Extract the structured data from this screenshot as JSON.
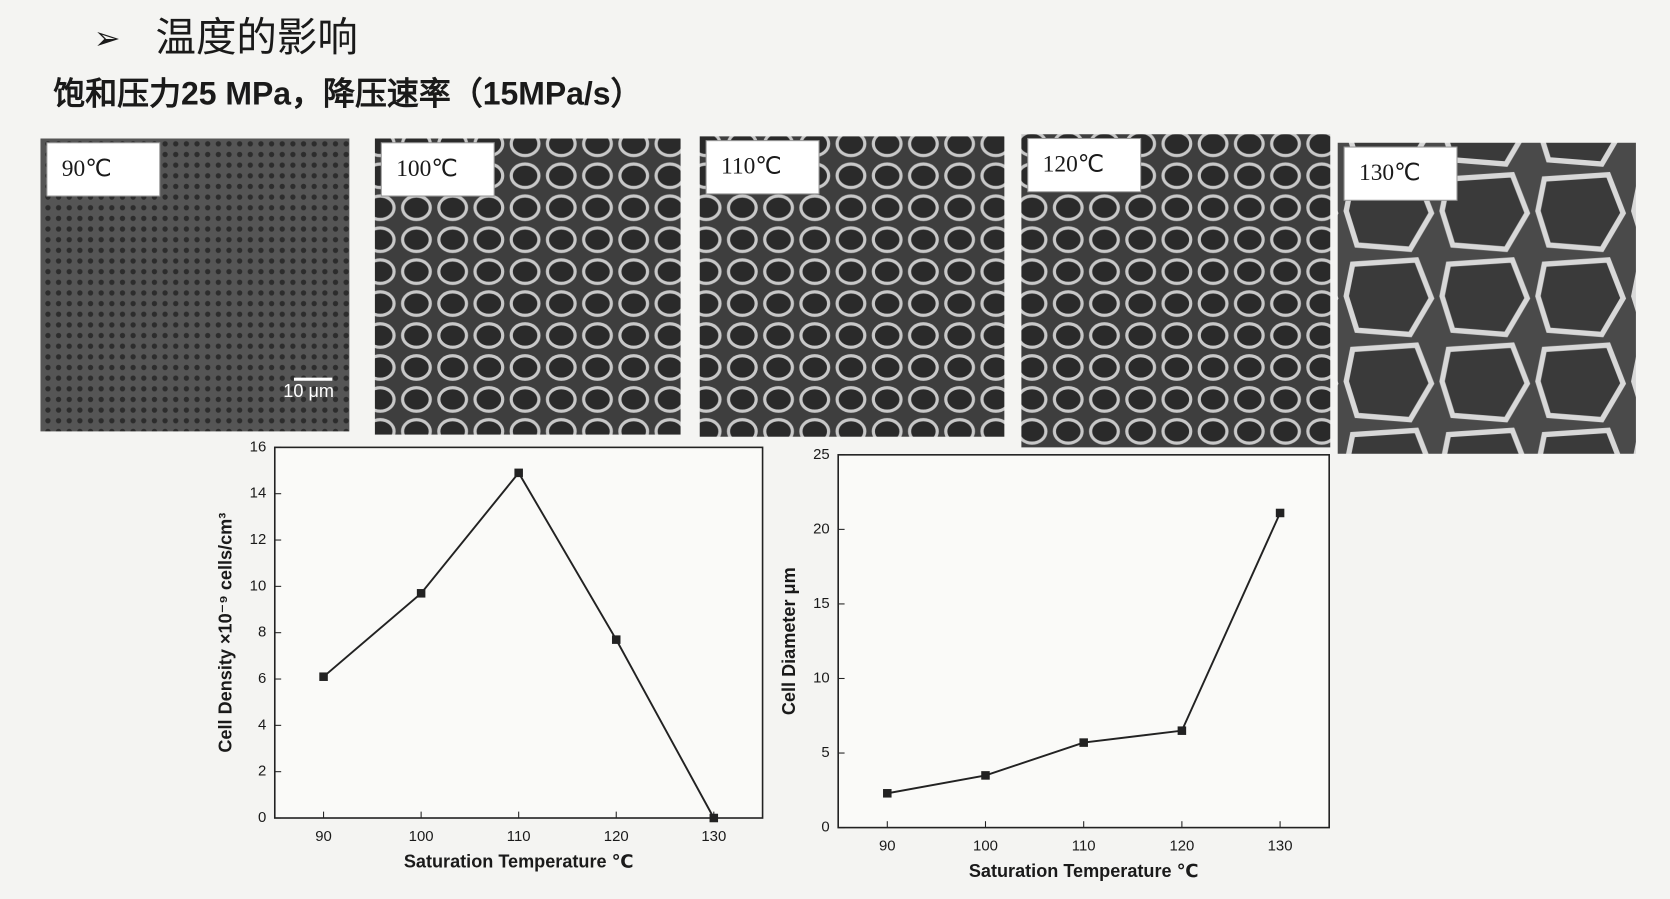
{
  "header": {
    "title": "温度的影响",
    "subtitle": "饱和压力25 MPa，降压速率（15MPa/s）"
  },
  "images": [
    {
      "label": "90℃"
    },
    {
      "label": "100℃"
    },
    {
      "label": "110℃"
    },
    {
      "label": "120℃"
    },
    {
      "label": "130℃"
    }
  ],
  "scale_bar": "10 μm",
  "chart_data": [
    {
      "type": "line",
      "x": [
        90,
        100,
        110,
        120,
        130
      ],
      "values": [
        6.1,
        9.7,
        14.9,
        7.7,
        0
      ],
      "xlim": [
        85,
        135
      ],
      "xticks": [
        90,
        100,
        110,
        120,
        130
      ],
      "ylim": [
        0,
        16
      ],
      "yticks": [
        0,
        2,
        4,
        6,
        8,
        10,
        12,
        14,
        16
      ],
      "x_label": "Saturation Temperature ℃",
      "y_label": "Cell Density ×10⁻⁹ cells/cm³",
      "color": "#222222"
    },
    {
      "type": "line",
      "x": [
        90,
        100,
        110,
        120,
        130
      ],
      "values": [
        2.3,
        3.5,
        5.7,
        6.5,
        21.1
      ],
      "xlim": [
        85,
        135
      ],
      "xticks": [
        90,
        100,
        110,
        120,
        130
      ],
      "ylim": [
        0,
        25
      ],
      "yticks": [
        0,
        5,
        10,
        15,
        20,
        25
      ],
      "x_label": "Saturation Temperature ℃",
      "y_label": "Cell Diameter μm",
      "color": "#222222"
    }
  ]
}
